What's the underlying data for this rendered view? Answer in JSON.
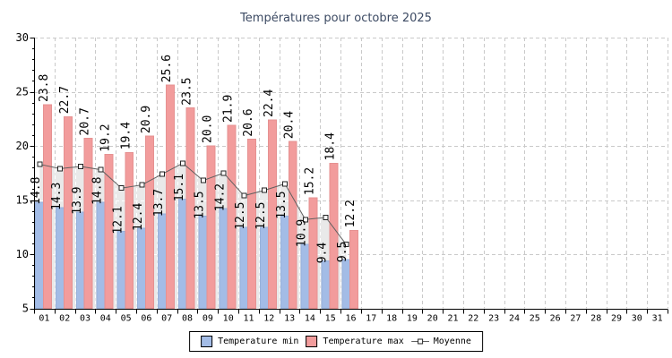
{
  "title": "Températures pour octobre 2025",
  "colors": {
    "temp_min_bar": "#a3bce6",
    "temp_min_border": "#97b1da",
    "temp_max_bar": "#f29c9c",
    "temp_max_border": "#e69191",
    "moyenne_line": "#606060",
    "marker_fill": "#ffffff",
    "marker_border": "#222222",
    "area_fill": "#e9e9e9",
    "gridline": "#c9c9c9",
    "gridline_on_area": "#ffffff",
    "axis": "#000000",
    "title_text": "#3c4a63",
    "label_text": "#000000"
  },
  "legend": {
    "position": "bottom",
    "moyenne_icon": "line-with-square-marker-icon"
  },
  "chart_data": {
    "type": "bar",
    "title": "Températures pour octobre 2025",
    "xlabel": "",
    "ylabel": "",
    "ylim": [
      5,
      30
    ],
    "yticks": [
      5,
      10,
      15,
      20,
      25,
      30
    ],
    "y_minor_step": 1,
    "grid": true,
    "legend_position": "bottom",
    "bar_label_decimals": 1,
    "categories": [
      "01",
      "02",
      "03",
      "04",
      "05",
      "06",
      "07",
      "08",
      "09",
      "10",
      "11",
      "12",
      "13",
      "14",
      "15",
      "16",
      "17",
      "18",
      "19",
      "20",
      "21",
      "22",
      "23",
      "24",
      "25",
      "26",
      "27",
      "28",
      "29",
      "30",
      "31"
    ],
    "series": [
      {
        "name": "Temperature min",
        "type": "bar",
        "color": "#a3bce6",
        "values": [
          14.8,
          14.3,
          13.9,
          14.8,
          12.1,
          12.4,
          13.7,
          15.1,
          13.5,
          14.2,
          12.5,
          12.5,
          13.5,
          10.9,
          9.4,
          9.5
        ]
      },
      {
        "name": "Temperature max",
        "type": "bar",
        "color": "#f29c9c",
        "values": [
          23.8,
          22.7,
          20.7,
          19.2,
          19.4,
          20.9,
          25.6,
          23.5,
          20.0,
          21.9,
          20.6,
          22.4,
          20.4,
          15.2,
          18.4,
          12.2
        ]
      },
      {
        "name": "Moyenne",
        "type": "line",
        "color": "#606060",
        "values": [
          18.3,
          17.9,
          18.1,
          17.8,
          16.1,
          16.4,
          17.4,
          18.4,
          16.8,
          17.5,
          15.4,
          15.9,
          16.5,
          13.2,
          13.4,
          10.9
        ]
      }
    ]
  }
}
